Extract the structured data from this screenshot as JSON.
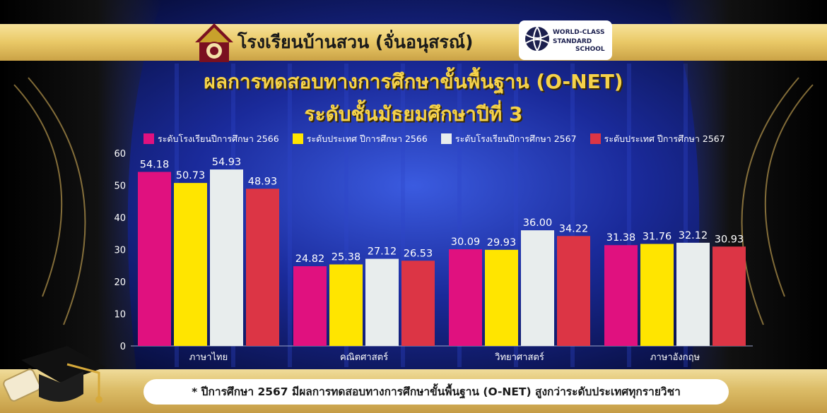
{
  "header": {
    "school_name": "โรงเรียนบ้านสวน (จั่นอนุสรณ์)",
    "wcs_logo": {
      "line1": "WORLD-CLASS",
      "line2": "STANDARD",
      "line3": "SCHOOL"
    }
  },
  "title": {
    "line1": "ผลการทดสอบทางการศึกษาขั้นพื้นฐาน (O-NET)",
    "line2": "ระดับชั้นมัธยมศึกษาปีที่ 3"
  },
  "footnote": "* ปีการศึกษา 2567 มีผลการทดสอบทางการศึกษาขั้นพื้นฐาน (O-NET) สูงกว่าระดับประเทศทุกรายวิชา",
  "colors": {
    "background": "#0a0f4a",
    "title_gold": "#f5d24a",
    "series": [
      "#e0117f",
      "#ffe500",
      "#e8eded",
      "#dc3545"
    ]
  },
  "icons": {
    "school_logo": "school-crest-icon",
    "wcs_logo": "globe-icon",
    "cap": "graduation-cap-icon"
  },
  "chart_data": {
    "type": "bar",
    "categories": [
      "ภาษาไทย",
      "คณิตศาสตร์",
      "วิทยาศาสตร์",
      "ภาษาอังกฤษ"
    ],
    "series": [
      {
        "name": "ระดับโรงเรียนปีการศึกษา 2566",
        "values": [
          54.18,
          24.82,
          30.09,
          31.38
        ]
      },
      {
        "name": "ระดับประเทศ ปีการศึกษา 2566",
        "values": [
          50.73,
          25.38,
          29.93,
          31.76
        ]
      },
      {
        "name": "ระดับโรงเรียนปีการศึกษา 2567",
        "values": [
          54.93,
          27.12,
          36.0,
          32.12
        ]
      },
      {
        "name": "ระดับประเทศ ปีการศึกษา 2567",
        "values": [
          48.93,
          26.53,
          34.22,
          30.93
        ]
      }
    ],
    "value_labels": [
      [
        "54.18",
        "24.82",
        "30.09",
        "31.38"
      ],
      [
        "50.73",
        "25.38",
        "29.93",
        "31.76"
      ],
      [
        "54.93",
        "27.12",
        "36.00",
        "32.12"
      ],
      [
        "48.93",
        "26.53",
        "34.22",
        "30.93"
      ]
    ],
    "yticks": [
      0,
      10,
      20,
      30,
      40,
      50,
      60
    ],
    "ylim": [
      0,
      60
    ],
    "grid": false,
    "legend": "top"
  }
}
